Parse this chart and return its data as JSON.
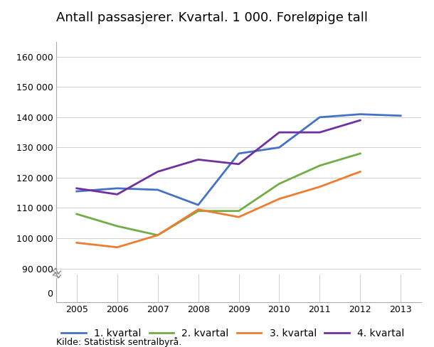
{
  "title": "Antall passasjerer. Kvartal. 1 000. Foreløpige tall",
  "years": [
    2005,
    2006,
    2007,
    2008,
    2009,
    2010,
    2011,
    2012,
    2013
  ],
  "series": {
    "1. kvartal": {
      "values": [
        115500,
        116500,
        116000,
        111000,
        128000,
        130000,
        140000,
        141000,
        140500
      ],
      "color": "#4472c4"
    },
    "2. kvartal": {
      "values": [
        108000,
        104000,
        101000,
        109000,
        109000,
        118000,
        124000,
        128000,
        null
      ],
      "color": "#70ad47"
    },
    "3. kvartal": {
      "values": [
        98500,
        97000,
        101000,
        109500,
        107000,
        113000,
        117000,
        122000,
        null
      ],
      "color": "#ed7d31"
    },
    "4. kvartal": {
      "values": [
        116500,
        114500,
        122000,
        126000,
        124500,
        135000,
        135000,
        139000,
        null
      ],
      "color": "#7030a0"
    }
  },
  "xlim": [
    2004.5,
    2013.5
  ],
  "ylim_main": [
    88000,
    165000
  ],
  "ylim_break_low": 0,
  "ylim_break_high": 88000,
  "yticks": [
    0,
    90000,
    100000,
    110000,
    120000,
    130000,
    140000,
    150000,
    160000
  ],
  "ytick_labels": [
    "0",
    "90 000",
    "100 000",
    "110 000",
    "120 000",
    "130 000",
    "140 000",
    "150 000",
    "160 000"
  ],
  "source_text": "Kilde: Statistisk sentralbyrå.",
  "background_color": "#ffffff",
  "grid_color": "#d0d0d0",
  "line_width": 2.0,
  "title_fontsize": 13,
  "tick_fontsize": 9,
  "legend_fontsize": 10,
  "source_fontsize": 9
}
